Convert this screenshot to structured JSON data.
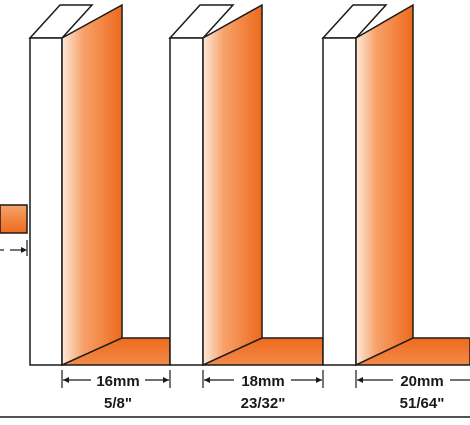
{
  "colors": {
    "orange_light": "#fde9da",
    "orange_mid": "#f7a26b",
    "orange_dark": "#ee6a1c",
    "outline": "#1a1a1a",
    "background": "#ffffff"
  },
  "grooves": [
    {
      "metric": "16mm",
      "imperial": "5/8\""
    },
    {
      "metric": "18mm",
      "imperial": "23/32\""
    },
    {
      "metric": "20mm",
      "imperial": "51/64\""
    }
  ]
}
